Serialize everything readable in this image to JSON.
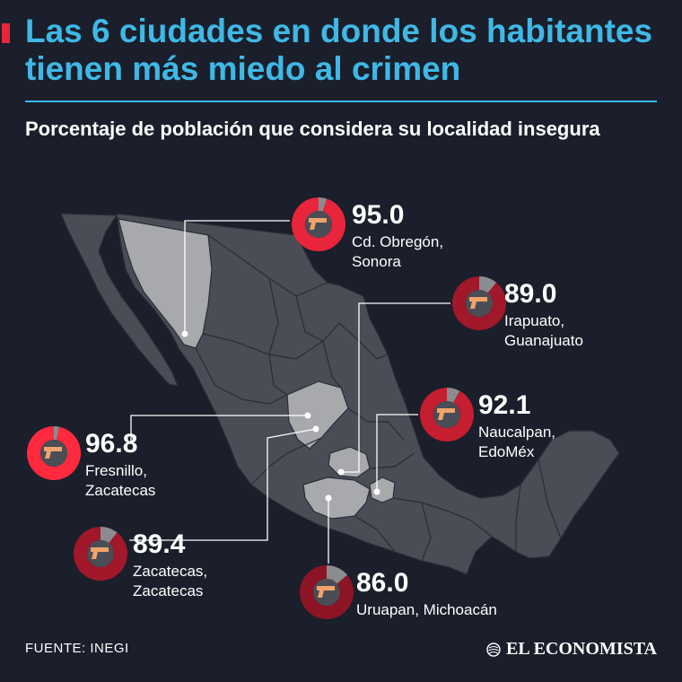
{
  "header": {
    "title": "Las 6 ciudades en donde los habitantes tienen más miedo al crimen",
    "subtitle": "Porcentaje de población que considera su localidad insegura"
  },
  "footer": {
    "source": "FUENTE: INEGI",
    "brand": "EL ECONOMISTA"
  },
  "colors": {
    "background": "#1a1f2b",
    "title": "#3fb8e6",
    "accent_red": "#e8253a",
    "dark_red": "#a0182a",
    "map_states": "#4a4d55",
    "map_highlight": "#a7a9ad",
    "ring_remainder": "#8a8c90"
  },
  "icon": "pistol-icon",
  "chart_data": {
    "type": "pie",
    "title": "Las 6 ciudades en donde los habitantes tienen más miedo al crimen",
    "subtitle": "Porcentaje de población que considera su localidad insegura",
    "unit": "%",
    "series": [
      {
        "value": 95.0,
        "label": "95.0",
        "city": "Cd. Obregón,\nSonora",
        "ring_color": "#e8253a"
      },
      {
        "value": 89.0,
        "label": "89.0",
        "city": "Irapuato,\nGuanajuato",
        "ring_color": "#a0182a"
      },
      {
        "value": 92.1,
        "label": "92.1",
        "city": "Naucalpan,\nEdoMéx",
        "ring_color": "#c41e30"
      },
      {
        "value": 96.8,
        "label": "96.8",
        "city": "Fresnillo,\nZacatecas",
        "ring_color": "#ff2a3d"
      },
      {
        "value": 89.4,
        "label": "89.4",
        "city": "Zacatecas,\nZacatecas",
        "ring_color": "#a0182a"
      },
      {
        "value": 86.0,
        "label": "86.0",
        "city": "Uruapan, Michoacán",
        "ring_color": "#8c1424"
      }
    ]
  }
}
